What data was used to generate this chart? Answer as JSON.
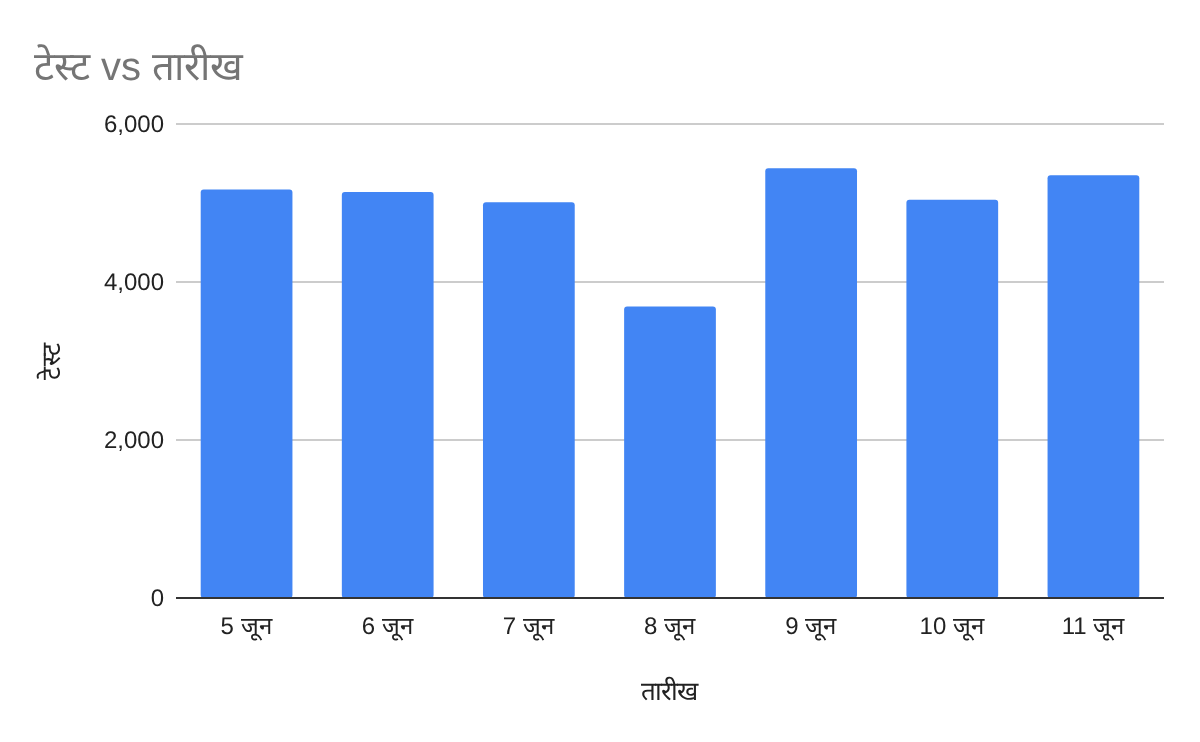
{
  "chart_data": {
    "type": "bar",
    "title": "टेस्ट vs तारीख",
    "xlabel": "तारीख",
    "ylabel": "टेस्ट",
    "categories": [
      "5 जून",
      "6 जून",
      "7 जून",
      "8 जून",
      "9 जून",
      "10 जून",
      "11 जून"
    ],
    "values": [
      5170,
      5140,
      5010,
      3690,
      5440,
      5040,
      5350
    ],
    "color": "#4285f4",
    "ylim": [
      0,
      6000
    ],
    "yticks": [
      {
        "value": 0,
        "label": "0"
      },
      {
        "value": 2000,
        "label": "2,000"
      },
      {
        "value": 4000,
        "label": "4,000"
      },
      {
        "value": 6000,
        "label": "6,000"
      }
    ],
    "grid": "y"
  }
}
